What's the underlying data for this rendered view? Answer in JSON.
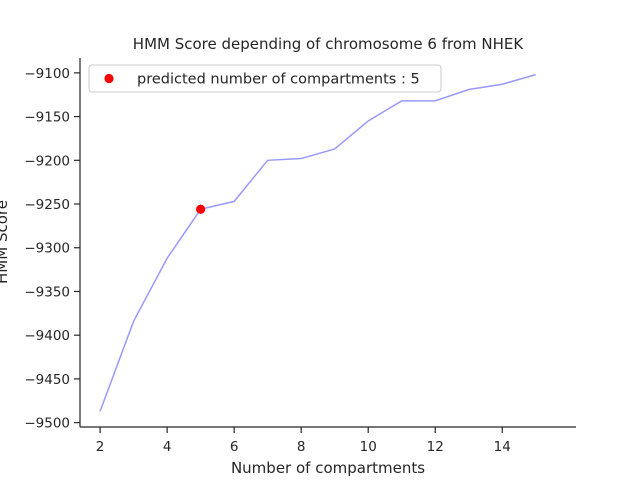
{
  "chart_data": {
    "type": "line",
    "title": "HMM Score depending of chromosome 6 from NHEK",
    "xlabel": "Number of compartments",
    "ylabel": "HMM Score",
    "xlim": [
      1.4,
      16.2
    ],
    "ylim": [
      -9505,
      -9083
    ],
    "xticks": [
      2,
      4,
      6,
      8,
      10,
      12,
      14
    ],
    "yticks": [
      -9500,
      -9450,
      -9400,
      -9350,
      -9300,
      -9250,
      -9200,
      -9150,
      -9100
    ],
    "grid": false,
    "legend_position": "top-left",
    "series": [
      {
        "color": "#9999ff",
        "x": [
          2,
          3,
          4,
          5,
          6,
          7,
          8,
          9,
          10,
          11,
          12,
          13,
          14,
          15
        ],
        "y": [
          -9487,
          -9384,
          -9312,
          -9256,
          -9247,
          -9200,
          -9198,
          -9187,
          -9155,
          -9132,
          -9132,
          -9119,
          -9113,
          -9102
        ]
      }
    ],
    "highlight": {
      "label": "predicted number of compartments : 5",
      "color": "#ff0000",
      "x": 5,
      "y": -9256
    }
  }
}
